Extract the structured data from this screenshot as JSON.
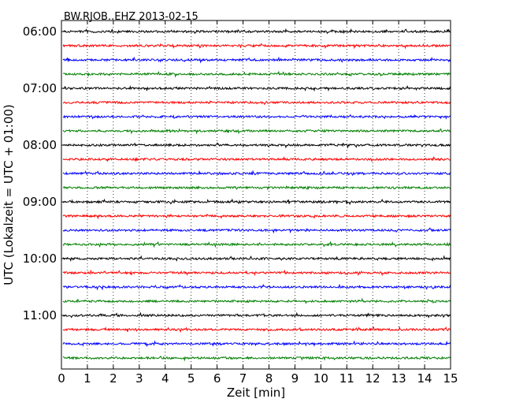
{
  "chart_data": {
    "type": "line",
    "title": "BW.RJOB..EHZ 2013-02-15",
    "xlabel": "Zeit  [min]",
    "ylabel": "UTC (Lokalzeit = UTC + 01:00)",
    "xlim": [
      0,
      15
    ],
    "x_ticks": [
      "0",
      "1",
      "2",
      "3",
      "4",
      "5",
      "6",
      "7",
      "8",
      "9",
      "10",
      "11",
      "12",
      "13",
      "14",
      "15"
    ],
    "y_ticks": [
      "06:00",
      "07:00",
      "08:00",
      "09:00",
      "10:00",
      "11:00"
    ],
    "grid": "vertical-dotted",
    "row_interval_minutes": 15,
    "rows": [
      {
        "start": "06:00",
        "color": "#000000"
      },
      {
        "start": "06:15",
        "color": "#ff0000"
      },
      {
        "start": "06:30",
        "color": "#0000ff"
      },
      {
        "start": "06:45",
        "color": "#008000"
      },
      {
        "start": "07:00",
        "color": "#000000"
      },
      {
        "start": "07:15",
        "color": "#ff0000"
      },
      {
        "start": "07:30",
        "color": "#0000ff"
      },
      {
        "start": "07:45",
        "color": "#008000"
      },
      {
        "start": "08:00",
        "color": "#000000"
      },
      {
        "start": "08:15",
        "color": "#ff0000"
      },
      {
        "start": "08:30",
        "color": "#0000ff"
      },
      {
        "start": "08:45",
        "color": "#008000"
      },
      {
        "start": "09:00",
        "color": "#000000"
      },
      {
        "start": "09:15",
        "color": "#ff0000"
      },
      {
        "start": "09:30",
        "color": "#0000ff"
      },
      {
        "start": "09:45",
        "color": "#008000"
      },
      {
        "start": "10:00",
        "color": "#000000"
      },
      {
        "start": "10:15",
        "color": "#ff0000"
      },
      {
        "start": "10:30",
        "color": "#0000ff"
      },
      {
        "start": "10:45",
        "color": "#008000"
      },
      {
        "start": "11:00",
        "color": "#000000"
      },
      {
        "start": "11:15",
        "color": "#ff0000"
      },
      {
        "start": "11:30",
        "color": "#0000ff"
      },
      {
        "start": "11:45",
        "color": "#008000"
      }
    ]
  }
}
